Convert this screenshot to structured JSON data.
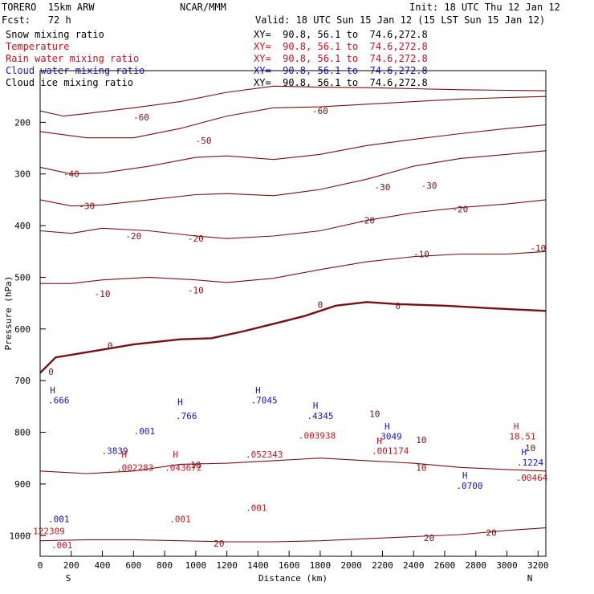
{
  "header": {
    "model": "TORERO  15km ARW",
    "center": "NCAR/MMM",
    "init": "Init: 18 UTC Thu 12 Jan 12",
    "fcst": "Fcst:   72 h",
    "valid": "Valid: 18 UTC Sun 15 Jan 12 (15 LST Sun 15 Jan 12)"
  },
  "fields": [
    {
      "label": "Snow mixing ratio",
      "xy": "XY=  90.8, 56.1 to  74.6,272.8",
      "color": "#000000"
    },
    {
      "label": "Temperature",
      "xy": "XY=  90.8, 56.1 to  74.6,272.8",
      "color": "#c8141e"
    },
    {
      "label": "Rain water mixing ratio",
      "xy": "XY=  90.8, 56.1 to  74.6,272.8",
      "color": "#c8141e"
    },
    {
      "label": "Cloud water mixing ratio",
      "xy": "XY=  90.8, 56.1 to  74.6,272.8",
      "color": "#1414c8"
    },
    {
      "label": "Cloud ice mixing ratio",
      "xy": "XY=  90.8, 56.1 to  74.6,272.8",
      "color": "#000000"
    }
  ],
  "chart_data": {
    "type": "line",
    "subtype": "vertical cross-section contour",
    "xlabel": "Distance (km)",
    "ylabel": "Pressure (hPa)",
    "x_ticks": [
      0,
      200,
      400,
      600,
      800,
      1000,
      1200,
      1400,
      1600,
      1800,
      2000,
      2200,
      2400,
      2600,
      2800,
      3000,
      3200
    ],
    "y_ticks": [
      200,
      300,
      400,
      500,
      600,
      700,
      800,
      900,
      1000
    ],
    "xlim": [
      0,
      3250
    ],
    "ylim": [
      1040,
      100
    ],
    "x_end_labels": {
      "left": "S",
      "right": "N"
    },
    "temperature_isotherms": [
      {
        "label": "-60",
        "x": [
          0,
          150,
          300,
          600,
          900,
          1200,
          1500,
          1800,
          2100,
          2400,
          2700,
          3000,
          3250
        ],
        "p": [
          178,
          188,
          183,
          172,
          160,
          142,
          130,
          132,
          133,
          135,
          137,
          138,
          139
        ]
      },
      {
        "label": "-50",
        "x": [
          0,
          300,
          600,
          900,
          1200,
          1500,
          1800,
          2100,
          2400,
          2700,
          3000,
          3250
        ],
        "p": [
          218,
          230,
          230,
          212,
          188,
          172,
          170,
          165,
          160,
          155,
          152,
          150
        ]
      },
      {
        "label": "-40",
        "x": [
          0,
          200,
          400,
          700,
          1000,
          1200,
          1500,
          1800,
          2100,
          2400,
          2700,
          3000,
          3250
        ],
        "p": [
          287,
          300,
          298,
          285,
          268,
          265,
          272,
          262,
          245,
          233,
          222,
          212,
          205
        ]
      },
      {
        "label": "-30",
        "x": [
          0,
          200,
          400,
          700,
          1000,
          1200,
          1500,
          1800,
          2100,
          2400,
          2700,
          3000,
          3250
        ],
        "p": [
          350,
          362,
          360,
          350,
          340,
          338,
          342,
          330,
          310,
          285,
          270,
          262,
          255
        ]
      },
      {
        "label": "-20",
        "x": [
          0,
          200,
          400,
          700,
          1000,
          1200,
          1500,
          1800,
          2100,
          2400,
          2700,
          3000,
          3250
        ],
        "p": [
          410,
          415,
          405,
          410,
          420,
          425,
          420,
          410,
          390,
          375,
          365,
          358,
          350
        ]
      },
      {
        "label": "-10",
        "x": [
          0,
          200,
          400,
          700,
          1000,
          1200,
          1500,
          1800,
          2100,
          2400,
          2700,
          3000,
          3250
        ],
        "p": [
          512,
          512,
          505,
          500,
          505,
          510,
          502,
          485,
          470,
          460,
          455,
          455,
          450
        ]
      },
      {
        "label": "0",
        "x": [
          0,
          100,
          300,
          600,
          900,
          1100,
          1300,
          1500,
          1700,
          1900,
          2100,
          2300,
          2600,
          2900,
          3250
        ],
        "p": [
          685,
          655,
          645,
          630,
          620,
          618,
          605,
          590,
          575,
          555,
          548,
          552,
          555,
          560,
          565
        ]
      },
      {
        "label": "10",
        "x": [
          0,
          300,
          600,
          900,
          1200,
          1500,
          1800,
          2100,
          2400,
          2700,
          3000,
          3250
        ],
        "p": [
          875,
          880,
          875,
          862,
          860,
          855,
          850,
          855,
          860,
          868,
          872,
          875
        ]
      },
      {
        "label": "20",
        "x": [
          0,
          300,
          600,
          900,
          1200,
          1500,
          1800,
          2100,
          2400,
          2700,
          3000,
          3250
        ],
        "p": [
          1010,
          1008,
          1008,
          1010,
          1012,
          1012,
          1010,
          1006,
          1002,
          998,
          990,
          985
        ]
      }
    ],
    "labels": [
      {
        "text": "-60",
        "x": 650,
        "p": 190,
        "series": "temperature"
      },
      {
        "text": "-60",
        "x": 1800,
        "p": 178,
        "series": "temperature"
      },
      {
        "text": "-50",
        "x": 1050,
        "p": 235,
        "series": "temperature"
      },
      {
        "text": "-40",
        "x": 200,
        "p": 300,
        "series": "temperature"
      },
      {
        "text": "-30",
        "x": 300,
        "p": 362,
        "series": "temperature"
      },
      {
        "text": "-30",
        "x": 2200,
        "p": 325,
        "series": "temperature"
      },
      {
        "text": "-30",
        "x": 2500,
        "p": 322,
        "series": "temperature"
      },
      {
        "text": "-20",
        "x": 600,
        "p": 420,
        "series": "temperature"
      },
      {
        "text": "-20",
        "x": 2100,
        "p": 390,
        "series": "temperature"
      },
      {
        "text": "-20",
        "x": 2700,
        "p": 368,
        "series": "temperature"
      },
      {
        "text": "-20",
        "x": 1000,
        "p": 425,
        "series": "temperature"
      },
      {
        "text": "-10",
        "x": 400,
        "p": 532,
        "series": "temperature"
      },
      {
        "text": "-10",
        "x": 1000,
        "p": 525,
        "series": "temperature"
      },
      {
        "text": "-10",
        "x": 2450,
        "p": 455,
        "series": "temperature"
      },
      {
        "text": "-10",
        "x": 3200,
        "p": 443,
        "series": "temperature"
      },
      {
        "text": "0",
        "x": 450,
        "p": 632,
        "series": "temperature"
      },
      {
        "text": "0",
        "x": 1800,
        "p": 553,
        "series": "temperature"
      },
      {
        "text": "0",
        "x": 2300,
        "p": 555,
        "series": "temperature"
      },
      {
        "text": "0",
        "x": 70,
        "p": 683,
        "series": "temperature"
      },
      {
        "text": "10",
        "x": 2150,
        "p": 764,
        "series": "temperature"
      },
      {
        "text": "10",
        "x": 2450,
        "p": 815,
        "series": "temperature"
      },
      {
        "text": "10",
        "x": 2450,
        "p": 868,
        "series": "temperature"
      },
      {
        "text": "10",
        "x": 3150,
        "p": 830,
        "series": "temperature"
      },
      {
        "text": "10",
        "x": 1000,
        "p": 863,
        "series": "temperature"
      },
      {
        "text": "20",
        "x": 1150,
        "p": 1015,
        "series": "temperature"
      },
      {
        "text": "20",
        "x": 2500,
        "p": 1004,
        "series": "temperature"
      },
      {
        "text": "20",
        "x": 2900,
        "p": 994,
        "series": "temperature"
      },
      {
        "text": "H",
        "x": 80,
        "p": 718,
        "series": "cloud-water"
      },
      {
        "text": ".666",
        "x": 120,
        "p": 738,
        "series": "cloud-water"
      },
      {
        "text": "H",
        "x": 900,
        "p": 741,
        "series": "cloud-water"
      },
      {
        "text": ".766",
        "x": 940,
        "p": 768,
        "series": "cloud-water"
      },
      {
        "text": "H",
        "x": 1400,
        "p": 718,
        "series": "cloud-water"
      },
      {
        "text": ".7045",
        "x": 1440,
        "p": 738,
        "series": "cloud-water"
      },
      {
        "text": "H",
        "x": 1770,
        "p": 748,
        "series": "cloud-water"
      },
      {
        "text": ".4345",
        "x": 1800,
        "p": 768,
        "series": "cloud-water"
      },
      {
        "text": "H",
        "x": 2230,
        "p": 788,
        "series": "cloud-water"
      },
      {
        "text": ".3049",
        "x": 2240,
        "p": 808,
        "series": "cloud-water"
      },
      {
        "text": ".001",
        "x": 670,
        "p": 798,
        "series": "cloud-water"
      },
      {
        "text": ".3839",
        "x": 480,
        "p": 836,
        "series": "cloud-water"
      },
      {
        "text": "H",
        "x": 2730,
        "p": 883,
        "series": "cloud-water"
      },
      {
        "text": ".0700",
        "x": 2760,
        "p": 903,
        "series": "cloud-water"
      },
      {
        "text": "H",
        "x": 3110,
        "p": 838,
        "series": "cloud-water"
      },
      {
        "text": ".1224",
        "x": 3150,
        "p": 858,
        "series": "cloud-water"
      },
      {
        "text": ".001",
        "x": 120,
        "p": 968,
        "series": "cloud-water"
      },
      {
        "text": ".122309",
        "x": 40,
        "p": 991,
        "series": "rain-water"
      },
      {
        "text": ".001",
        "x": 140,
        "p": 1018,
        "series": "rain-water"
      },
      {
        "text": ".002283",
        "x": 610,
        "p": 868,
        "series": "rain-water"
      },
      {
        "text": "H",
        "x": 540,
        "p": 843,
        "series": "rain-water"
      },
      {
        "text": "H",
        "x": 870,
        "p": 843,
        "series": "rain-water"
      },
      {
        "text": ".043672",
        "x": 920,
        "p": 868,
        "series": "rain-water"
      },
      {
        "text": ".001",
        "x": 900,
        "p": 968,
        "series": "rain-water"
      },
      {
        "text": ".052343",
        "x": 1440,
        "p": 843,
        "series": "rain-water"
      },
      {
        "text": ".001",
        "x": 1390,
        "p": 946,
        "series": "rain-water"
      },
      {
        "text": ".003938",
        "x": 1780,
        "p": 806,
        "series": "rain-water"
      },
      {
        "text": "H",
        "x": 2180,
        "p": 816,
        "series": "rain-water"
      },
      {
        "text": ".001174",
        "x": 2250,
        "p": 836,
        "series": "rain-water"
      },
      {
        "text": "H",
        "x": 3060,
        "p": 788,
        "series": "rain-water"
      },
      {
        "text": "18.51",
        "x": 3100,
        "p": 808,
        "series": "rain-water"
      },
      {
        "text": ".00464",
        "x": 3160,
        "p": 888,
        "series": "rain-water"
      }
    ]
  }
}
